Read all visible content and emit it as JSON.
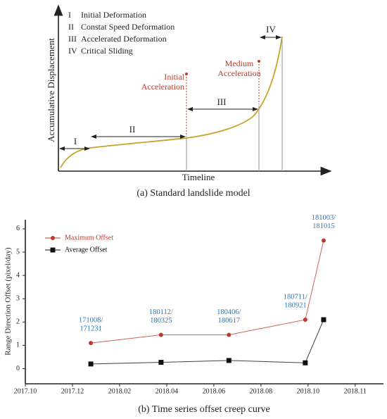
{
  "diagram": {
    "title": "(a) Standard landslide model",
    "y_label": "Accumulative Displacement",
    "x_label": "Timeline",
    "stages": [
      {
        "numeral": "I",
        "name": "Initial Deformation"
      },
      {
        "numeral": "II",
        "name": "Constat Speed Deformation"
      },
      {
        "numeral": "III",
        "name": "Accelerated Deformation"
      },
      {
        "numeral": "IV",
        "name": "Critical Sliding"
      }
    ],
    "annotations": [
      [
        "Initial",
        "Acceleration"
      ],
      [
        "Medium",
        "Acceleration"
      ]
    ]
  },
  "chart_data": {
    "type": "line",
    "title": "(b) Time series offset creep curve",
    "y_label": "Range Direction Offset (pixel/day)",
    "x": [
      1.39,
      2.88,
      4.32,
      5.94,
      6.33
    ],
    "xlim": [
      0,
      7.6
    ],
    "xticks": [
      {
        "value": 0,
        "label": "2017.10"
      },
      {
        "value": 1,
        "label": "2017.12"
      },
      {
        "value": 2,
        "label": "2018.02"
      },
      {
        "value": 3,
        "label": "2018.04"
      },
      {
        "value": 4,
        "label": "2018.06"
      },
      {
        "value": 5,
        "label": "2018.08"
      },
      {
        "value": 6,
        "label": "2018.10"
      },
      {
        "value": 7,
        "label": "2018.11"
      }
    ],
    "ylim": [
      -0.65,
      6.3
    ],
    "yticks": [
      0,
      1,
      2,
      3,
      4,
      5,
      6
    ],
    "legend": "upper left",
    "series": [
      {
        "name": "Maximum Offset",
        "color": "#c0392b",
        "marker": "circle",
        "values": [
          1.1,
          1.45,
          1.45,
          2.1,
          5.5
        ],
        "point_labels": [
          [
            "171008/",
            "171231"
          ],
          [
            "180112/",
            "180325"
          ],
          [
            "180406/",
            "180617"
          ],
          [
            "180711/",
            "180921"
          ],
          [
            "181003/",
            "181015"
          ]
        ],
        "point_label_color": "#2e75b6"
      },
      {
        "name": "Average Offset",
        "color": "#111111",
        "marker": "square",
        "values": [
          0.2,
          0.27,
          0.35,
          0.25,
          2.1
        ]
      }
    ]
  }
}
